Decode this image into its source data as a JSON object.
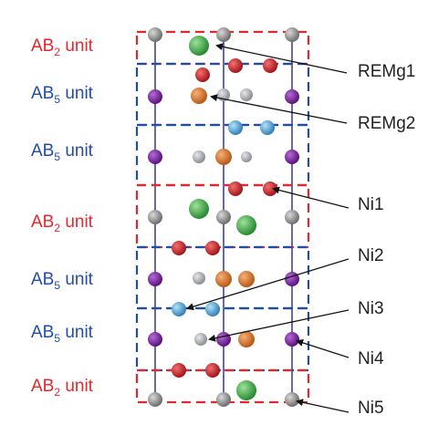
{
  "unit_labels": [
    {
      "id": "u1",
      "prefix": "AB",
      "sub": "2",
      "suffix": " unit",
      "kind": "ab2"
    },
    {
      "id": "u2",
      "prefix": "AB",
      "sub": "5",
      "suffix": " unit",
      "kind": "ab5"
    },
    {
      "id": "u3",
      "prefix": "AB",
      "sub": "5",
      "suffix": " unit",
      "kind": "ab5"
    },
    {
      "id": "u4",
      "prefix": "AB",
      "sub": "2",
      "suffix": " unit",
      "kind": "ab2"
    },
    {
      "id": "u5",
      "prefix": "AB",
      "sub": "5",
      "suffix": " unit",
      "kind": "ab5"
    },
    {
      "id": "u6",
      "prefix": "AB",
      "sub": "5",
      "suffix": " unit",
      "kind": "ab5"
    },
    {
      "id": "u7",
      "prefix": "AB",
      "sub": "2",
      "suffix": " unit",
      "kind": "ab2"
    }
  ],
  "site_labels": [
    {
      "id": "remg1",
      "text": "REMg1"
    },
    {
      "id": "remg2",
      "text": "REMg2"
    },
    {
      "id": "ni1",
      "text": "Ni1"
    },
    {
      "id": "ni2",
      "text": "Ni2"
    },
    {
      "id": "ni3",
      "text": "Ni3"
    },
    {
      "id": "ni4",
      "text": "Ni4"
    },
    {
      "id": "ni5",
      "text": "Ni5"
    }
  ],
  "colors": {
    "ab2_unit": "#e8262b",
    "ab5_unit": "#1f4ea8",
    "bond": "#6a6aa0",
    "atom_gray": "#8a8a8a",
    "atom_purple": "#7a2a9c",
    "atom_green": "#3fae49",
    "atom_orange": "#e0782a",
    "atom_red": "#d0262b",
    "atom_blue": "#4fa3d6",
    "atom_lightgray": "#a8aab0"
  }
}
